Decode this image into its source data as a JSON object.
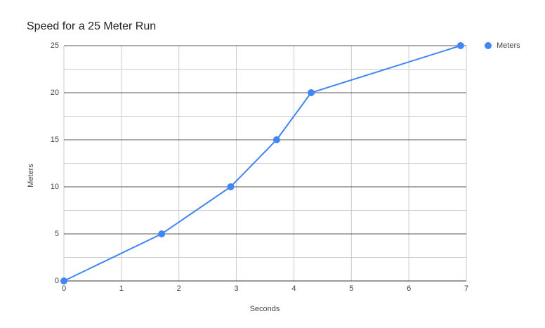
{
  "chart_data": {
    "type": "line",
    "title": "Speed for a 25 Meter Run",
    "x_label": "Seconds",
    "y_label": "Meters",
    "x": [
      0,
      1.7,
      2.9,
      3.7,
      4.3,
      6.9
    ],
    "series": [
      {
        "name": "Meters",
        "color": "#4285f4",
        "values": [
          0,
          5,
          10,
          15,
          20,
          25
        ]
      }
    ],
    "xlim": [
      0,
      7
    ],
    "xticks": [
      0,
      1,
      2,
      3,
      4,
      5,
      6,
      7
    ],
    "ylim": [
      0,
      25
    ],
    "yticks": [
      0,
      5,
      10,
      15,
      20,
      25
    ],
    "grid": true,
    "legend": "right"
  }
}
